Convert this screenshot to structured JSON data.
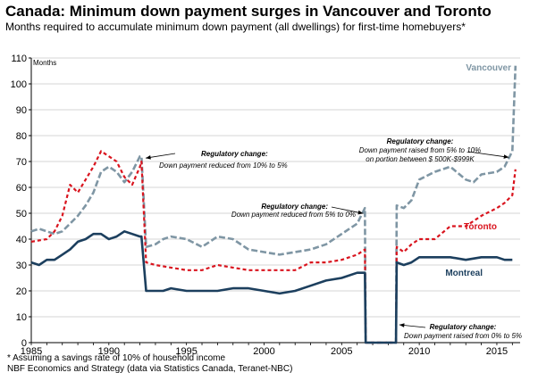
{
  "header": {
    "title": "Canada: Minimum down payment surges in Vancouver and Toronto",
    "subtitle": "Months required to accumulate minimum down payment (all dwellings) for first-time homebuyers*"
  },
  "footer": {
    "note": "* Assuming a savings rate of 10% of household income",
    "source": "NBF Economics and Strategy (data via Statistics Canada, Teranet-NBC)"
  },
  "colors": {
    "vancouver": "#7f96a4",
    "toronto": "#d9141e",
    "montreal": "#1c3f5e"
  },
  "chart_data": {
    "type": "line",
    "title": "",
    "xlabel": "",
    "ylabel": "Months",
    "xlim": [
      1985,
      2016.5
    ],
    "ylim": [
      0,
      110
    ],
    "x_ticks": [
      "1985",
      "1990",
      "1995",
      "2000",
      "2005",
      "2010",
      "2015"
    ],
    "y_ticks": [
      "0",
      "10",
      "20",
      "30",
      "40",
      "50",
      "60",
      "70",
      "80",
      "90",
      "100",
      "110"
    ],
    "grid": "horizontal",
    "series": [
      {
        "name": "Vancouver",
        "style": "dashed",
        "x": [
          1985,
          1985.5,
          1986,
          1986.5,
          1987,
          1987.5,
          1988,
          1988.5,
          1989,
          1989.5,
          1990,
          1990.5,
          1991,
          1991.5,
          1992,
          1992.1,
          1992.4,
          1993,
          1993.5,
          1994,
          1995,
          1996,
          1997,
          1998,
          1999,
          2000,
          2001,
          2002,
          2003,
          2004,
          2005,
          2006,
          2006.5,
          2006.55,
          2007,
          2008.5,
          2008.55,
          2009,
          2009.5,
          2010,
          2011,
          2011.5,
          2012,
          2013,
          2013.5,
          2014,
          2015,
          2015.5,
          2016,
          2016.2
        ],
        "values": [
          43,
          44,
          43,
          42,
          43,
          46,
          49,
          53,
          58,
          66,
          68,
          66,
          62,
          66,
          72,
          72,
          37,
          38,
          40,
          41,
          40,
          37,
          41,
          40,
          36,
          35,
          34,
          35,
          36,
          38,
          42,
          46,
          52,
          0,
          0,
          0,
          53,
          52,
          55,
          63,
          66,
          67,
          68,
          63,
          62,
          65,
          66,
          68,
          74,
          107
        ]
      },
      {
        "name": "Toronto",
        "style": "dotted",
        "x": [
          1985,
          1986,
          1986.5,
          1987,
          1987.5,
          1988,
          1988.5,
          1989,
          1989.5,
          1990,
          1990.5,
          1991,
          1991.5,
          1992,
          1992.1,
          1992.4,
          1993,
          1994,
          1995,
          1996,
          1997,
          1998,
          1999,
          2000,
          2001,
          2002,
          2003,
          2004,
          2005,
          2006,
          2006.5,
          2006.55,
          2007,
          2008.5,
          2008.55,
          2009,
          2009.5,
          2010,
          2011,
          2012,
          2013,
          2014,
          2015,
          2015.5,
          2016,
          2016.2
        ],
        "values": [
          39,
          40,
          43,
          49,
          61,
          58,
          63,
          68,
          74,
          72,
          70,
          64,
          61,
          68,
          70,
          31,
          30,
          29,
          28,
          28,
          30,
          29,
          28,
          28,
          28,
          28,
          31,
          31,
          32,
          34,
          36,
          0,
          0,
          0,
          37,
          35,
          38,
          40,
          40,
          45,
          45,
          49,
          52,
          54,
          57,
          67
        ]
      },
      {
        "name": "Montreal",
        "style": "solid",
        "x": [
          1985,
          1985.5,
          1986,
          1986.5,
          1987,
          1987.5,
          1988,
          1988.5,
          1989,
          1989.5,
          1990,
          1990.5,
          1991,
          1991.5,
          1992,
          1992.1,
          1992.4,
          1993,
          1993.5,
          1994,
          1995,
          1996,
          1997,
          1998,
          1999,
          2000,
          2001,
          2002,
          2003,
          2004,
          2005,
          2006,
          2006.5,
          2006.55,
          2007,
          2008.5,
          2008.55,
          2009,
          2009.5,
          2010,
          2011,
          2012,
          2013,
          2014,
          2015,
          2015.5,
          2016
        ],
        "values": [
          31,
          30,
          32,
          32,
          34,
          36,
          39,
          40,
          42,
          42,
          40,
          41,
          43,
          42,
          41,
          41,
          20,
          20,
          20,
          21,
          20,
          20,
          20,
          21,
          21,
          20,
          19,
          20,
          22,
          24,
          25,
          27,
          27,
          0,
          0,
          0,
          31,
          30,
          31,
          33,
          33,
          33,
          32,
          33,
          33,
          32,
          32
        ]
      }
    ],
    "series_labels": [
      "Vancouver",
      "Toronto",
      "Montreal"
    ],
    "annotations": [
      {
        "lines": [
          "Regulatory change:",
          "Down payment reduced from 10% to 5%"
        ],
        "x": 1992.2,
        "y": 72
      },
      {
        "lines": [
          "Regulatory change:",
          "Down payment reduced from 5% to 0%"
        ],
        "x": 2006.5,
        "y": 52
      },
      {
        "lines": [
          "Regulatory change:",
          "Down payment raised from 5% to 10%",
          "on portion between $ 500K-$999K"
        ],
        "x": 2016,
        "y": 73
      },
      {
        "lines": [
          "Regulatory change:",
          "Down payment raised from 0% to 5%"
        ],
        "x": 2008.6,
        "y": 5
      }
    ]
  }
}
